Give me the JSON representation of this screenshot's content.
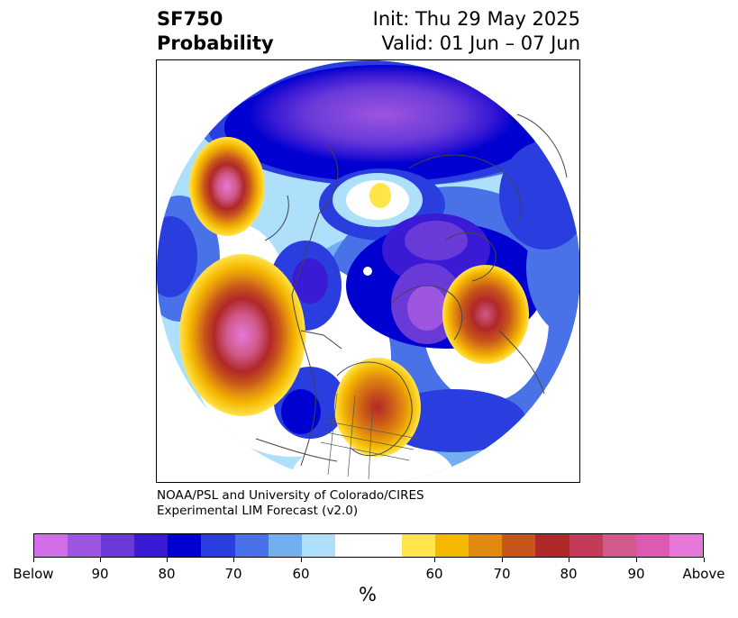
{
  "header": {
    "variable": "SF750",
    "product": "Probability",
    "init": "Init: Thu 29 May 2025",
    "valid": "Valid: 01 Jun – 07 Jun"
  },
  "credit": {
    "line1": "NOAA/PSL and University of Colorado/CIRES",
    "line2": "Experimental LIM Forecast (v2.0)"
  },
  "colorbar": {
    "unit": "%",
    "colors": [
      "#d16ee8",
      "#9e55e0",
      "#6a3ad9",
      "#3a1ad4",
      "#0000d0",
      "#2a3ee0",
      "#4a72e8",
      "#72aef0",
      "#aee0fb",
      "#ffffff",
      "#ffffff",
      "#ffe44a",
      "#f5b800",
      "#e08a10",
      "#c8551a",
      "#b02828",
      "#c43a58",
      "#d05a8c",
      "#dc5ab0",
      "#e678da"
    ],
    "tick_labels": [
      "Below",
      "90",
      "80",
      "70",
      "60",
      "60",
      "70",
      "80",
      "90",
      "Above"
    ]
  },
  "map": {
    "projection": "polar stereographic (North Pole)",
    "anomaly_colors": {
      "below": "#6a3ad9",
      "above": "#b02828"
    }
  }
}
